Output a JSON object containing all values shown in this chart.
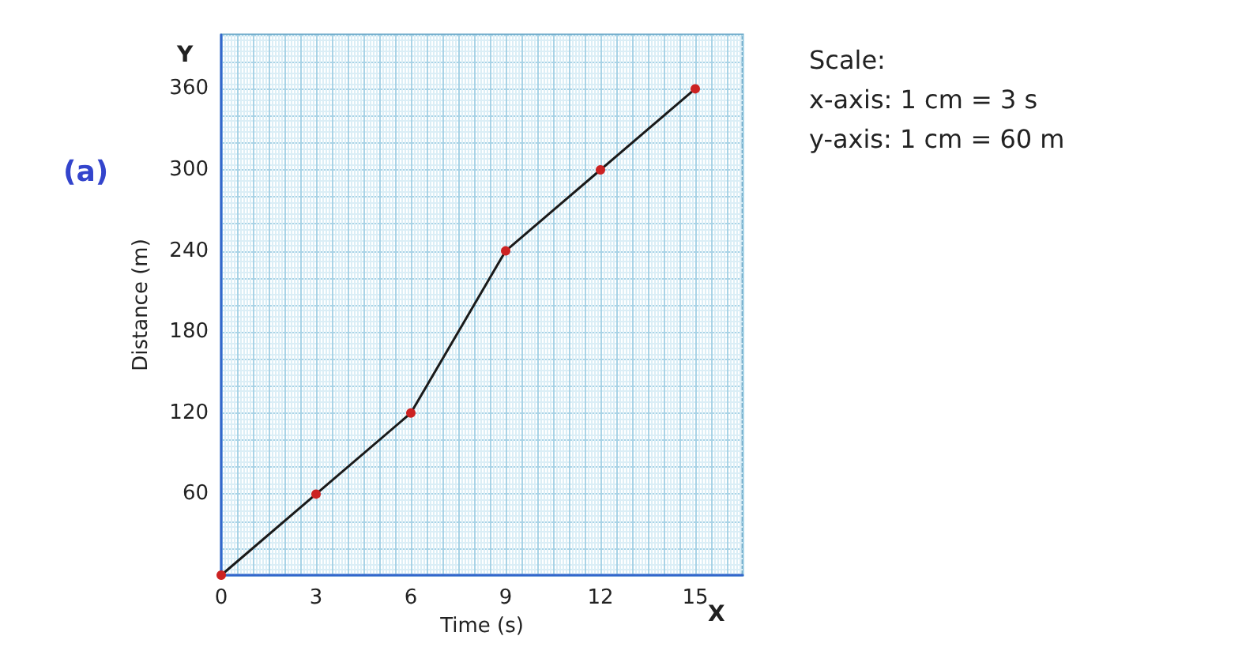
{
  "chart_data": {
    "type": "line",
    "xlabel": "Time (s)",
    "ylabel": "Distance (m)",
    "x": [
      0,
      3,
      6,
      9,
      12,
      15
    ],
    "series": [
      {
        "color": "#1a1a1a",
        "values": [
          0,
          60,
          120,
          240,
          300,
          360
        ]
      }
    ],
    "xlim": [
      0,
      16.5
    ],
    "ylim": [
      0,
      400
    ],
    "xticks": [
      0,
      3,
      6,
      9,
      12,
      15
    ],
    "yticks": [
      60,
      120,
      180,
      240,
      300,
      360
    ],
    "grid": true,
    "marker": "circle",
    "line_style": "solid",
    "annotations": [
      "(a)",
      "Y",
      "X",
      "Scale:",
      "x-axis: 1 cm = 3 s",
      "y-axis: 1 cm = 60 m"
    ]
  }
}
